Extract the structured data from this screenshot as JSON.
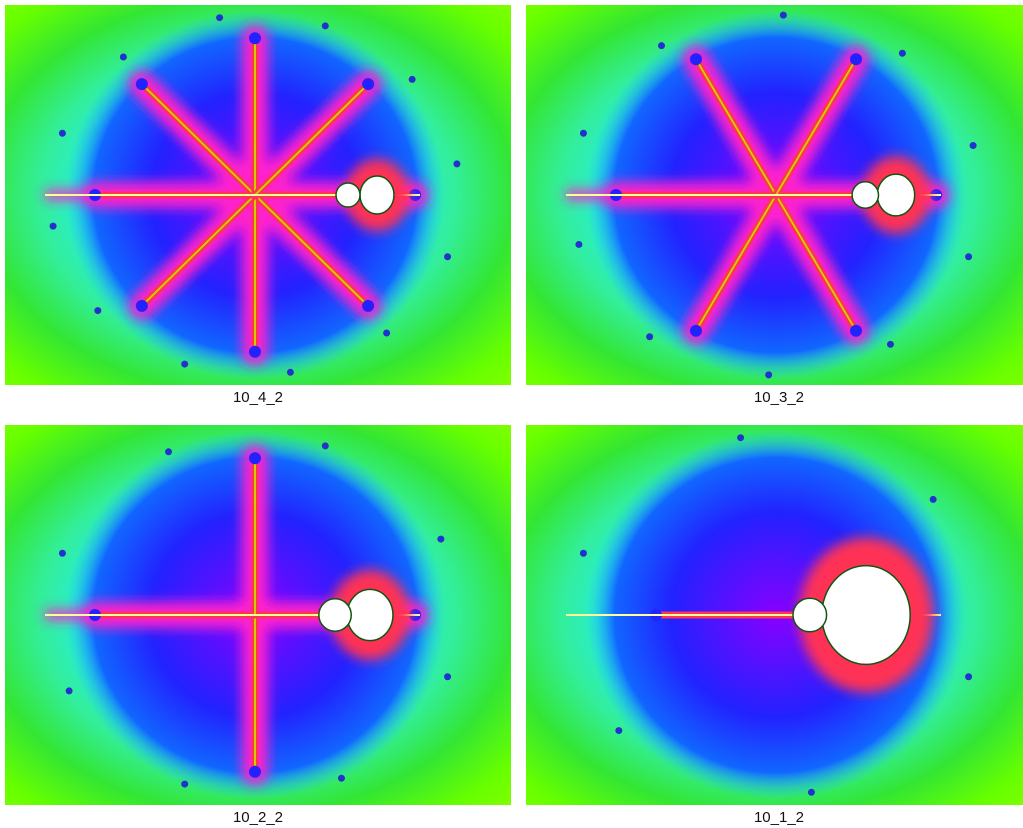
{
  "panels": [
    {
      "id": "10_4_2",
      "caption": "10_4_2",
      "arms": 8,
      "bulb_scale": 1.0
    },
    {
      "id": "10_3_2",
      "caption": "10_3_2",
      "arms": 6,
      "bulb_scale": 1.1
    },
    {
      "id": "10_2_2",
      "caption": "10_2_2",
      "arms": 4,
      "bulb_scale": 1.35
    },
    {
      "id": "10_1_2",
      "caption": "10_1_2",
      "arms": 2,
      "bulb_scale": 2.6
    }
  ],
  "colors": {
    "outer": "#33e633",
    "ring": "#66ff00",
    "cyan": "#22eeee",
    "blue": "#2222ff",
    "purple": "#8800ff",
    "magenta": "#ff22cc",
    "red": "#ff3355",
    "filament": "#cccc00",
    "set": "#ffffff"
  }
}
